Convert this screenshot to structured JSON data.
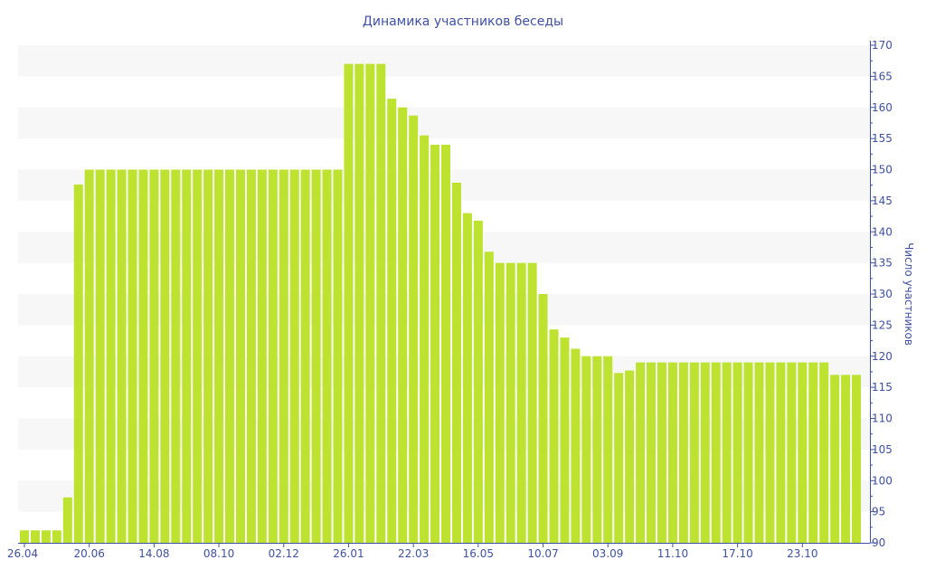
{
  "chart_data": {
    "type": "bar",
    "title": "Динамика участников беседы",
    "xlabel": "",
    "ylabel": "Число участников",
    "ylim": [
      90,
      170
    ],
    "y_ticks": [
      90,
      95,
      100,
      105,
      110,
      115,
      120,
      125,
      130,
      135,
      140,
      145,
      150,
      155,
      160,
      165,
      170
    ],
    "y_axis_side": "right",
    "grid": "alternating horizontal bands",
    "x_tick_labels": [
      {
        "index": 0,
        "label": "26.04"
      },
      {
        "index": 6,
        "label": "20.06"
      },
      {
        "index": 12,
        "label": "14.08"
      },
      {
        "index": 18,
        "label": "08.10"
      },
      {
        "index": 24,
        "label": "02.12"
      },
      {
        "index": 30,
        "label": "26.01"
      },
      {
        "index": 36,
        "label": "22.03"
      },
      {
        "index": 42,
        "label": "16.05"
      },
      {
        "index": 48,
        "label": "10.07"
      },
      {
        "index": 54,
        "label": "03.09"
      },
      {
        "index": 60,
        "label": "11.10"
      },
      {
        "index": 66,
        "label": "17.10"
      },
      {
        "index": 72,
        "label": "23.10"
      }
    ],
    "values": [
      92,
      92,
      92,
      92,
      97.3,
      147.6,
      150,
      150,
      150,
      150,
      150,
      150,
      150,
      150,
      150,
      150,
      150,
      150,
      150,
      150,
      150,
      150,
      150,
      150,
      150,
      150,
      150,
      150,
      150,
      150,
      167,
      167,
      167,
      167,
      161.4,
      160,
      158.7,
      155.5,
      154,
      154,
      147.9,
      143,
      141.8,
      136.8,
      135,
      135,
      135,
      135,
      130,
      124.3,
      123,
      121.2,
      120,
      120,
      120,
      117.3,
      117.7,
      119,
      119,
      119,
      119,
      119,
      119,
      119,
      119,
      119,
      119,
      119,
      119,
      119,
      119,
      119,
      119,
      119,
      119,
      117,
      117,
      117
    ],
    "colors": {
      "bar": "#bde230",
      "axis": "#3f51a3",
      "band": "#f7f7f7"
    }
  }
}
